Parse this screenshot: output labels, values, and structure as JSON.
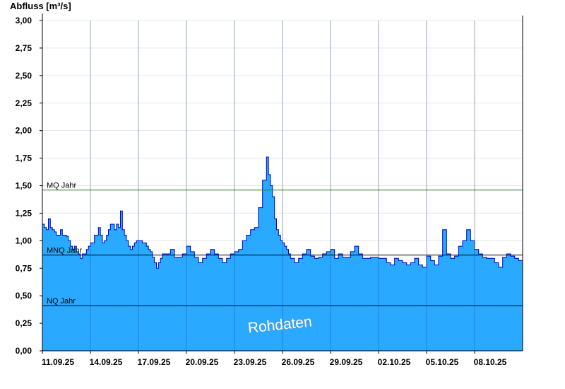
{
  "chart_data": {
    "type": "area",
    "ylabel": "Abfluss [m³/s]",
    "ylim": [
      0,
      3.0
    ],
    "yticks": [
      "0,00",
      "0,25",
      "0,50",
      "0,75",
      "1,00",
      "1,25",
      "1,50",
      "1,75",
      "2,00",
      "2,25",
      "2,50",
      "2,75",
      "3,00"
    ],
    "xlim": [
      "2025-09-11 00:00",
      "2025-10-11 00:00"
    ],
    "xticks": [
      {
        "date": "2025-09-11",
        "label": "11.09.25"
      },
      {
        "date": "2025-09-14",
        "label": "14.09.25"
      },
      {
        "date": "2025-09-17",
        "label": "17.09.25"
      },
      {
        "date": "2025-09-20",
        "label": "20.09.25"
      },
      {
        "date": "2025-09-23",
        "label": "23.09.25"
      },
      {
        "date": "2025-09-26",
        "label": "26.09.25"
      },
      {
        "date": "2025-09-29",
        "label": "29.09.25"
      },
      {
        "date": "2025-10-02",
        "label": "02.10.25"
      },
      {
        "date": "2025-10-05",
        "label": "05.10.25"
      },
      {
        "date": "2025-10-08",
        "label": "08.10.25"
      }
    ],
    "grid": true,
    "colors": {
      "fill": "#29a9ff",
      "line": "#0000cc",
      "mq": "#2e7d2e",
      "ref": "#000000"
    },
    "reference_lines": [
      {
        "label": "MQ Jahr",
        "value": 1.46
      },
      {
        "label": "MNQ Jahr",
        "value": 0.87
      },
      {
        "label": "NQ Jahr",
        "value": 0.41
      }
    ],
    "watermark": "Rohdaten",
    "series": [
      {
        "x": [
          "2025-09-11 00:00",
          "2025-09-11 03:00",
          "2025-09-11 06:00",
          "2025-09-11 09:00",
          "2025-09-11 12:00",
          "2025-09-11 15:00",
          "2025-09-11 18:00",
          "2025-09-11 21:00",
          "2025-09-12 00:00",
          "2025-09-12 03:00",
          "2025-09-12 06:00",
          "2025-09-12 09:00",
          "2025-09-12 12:00",
          "2025-09-12 15:00",
          "2025-09-12 18:00",
          "2025-09-12 21:00",
          "2025-09-13 00:00",
          "2025-09-13 03:00",
          "2025-09-13 06:00",
          "2025-09-13 09:00",
          "2025-09-13 12:00",
          "2025-09-13 15:00",
          "2025-09-13 18:00",
          "2025-09-13 21:00",
          "2025-09-14 00:00",
          "2025-09-14 06:00",
          "2025-09-14 12:00",
          "2025-09-14 15:00",
          "2025-09-14 18:00",
          "2025-09-14 21:00",
          "2025-09-15 00:00",
          "2025-09-15 03:00",
          "2025-09-15 06:00",
          "2025-09-15 09:00",
          "2025-09-15 12:00",
          "2025-09-15 15:00",
          "2025-09-15 18:00",
          "2025-09-15 21:00",
          "2025-09-16 00:00",
          "2025-09-16 03:00",
          "2025-09-16 06:00",
          "2025-09-16 09:00",
          "2025-09-16 12:00",
          "2025-09-16 15:00",
          "2025-09-16 18:00",
          "2025-09-16 21:00",
          "2025-09-17 00:00",
          "2025-09-17 06:00",
          "2025-09-17 12:00",
          "2025-09-17 15:00",
          "2025-09-17 18:00",
          "2025-09-17 21:00",
          "2025-09-18 00:00",
          "2025-09-18 03:00",
          "2025-09-18 06:00",
          "2025-09-18 09:00",
          "2025-09-18 12:00",
          "2025-09-18 15:00",
          "2025-09-18 18:00",
          "2025-09-18 21:00",
          "2025-09-19 00:00",
          "2025-09-19 06:00",
          "2025-09-19 12:00",
          "2025-09-19 18:00",
          "2025-09-20 00:00",
          "2025-09-20 06:00",
          "2025-09-20 12:00",
          "2025-09-20 18:00",
          "2025-09-21 00:00",
          "2025-09-21 06:00",
          "2025-09-21 12:00",
          "2025-09-21 18:00",
          "2025-09-22 00:00",
          "2025-09-22 06:00",
          "2025-09-22 12:00",
          "2025-09-22 18:00",
          "2025-09-23 00:00",
          "2025-09-23 06:00",
          "2025-09-23 12:00",
          "2025-09-23 18:00",
          "2025-09-24 00:00",
          "2025-09-24 06:00",
          "2025-09-24 12:00",
          "2025-09-24 18:00",
          "2025-09-25 00:00",
          "2025-09-25 03:00",
          "2025-09-25 06:00",
          "2025-09-25 09:00",
          "2025-09-25 12:00",
          "2025-09-25 15:00",
          "2025-09-25 18:00",
          "2025-09-25 21:00",
          "2025-09-26 00:00",
          "2025-09-26 03:00",
          "2025-09-26 06:00",
          "2025-09-26 09:00",
          "2025-09-26 12:00",
          "2025-09-26 18:00",
          "2025-09-27 00:00",
          "2025-09-27 06:00",
          "2025-09-27 12:00",
          "2025-09-27 18:00",
          "2025-09-28 00:00",
          "2025-09-28 06:00",
          "2025-09-28 12:00",
          "2025-09-28 18:00",
          "2025-09-29 00:00",
          "2025-09-29 06:00",
          "2025-09-29 12:00",
          "2025-09-29 18:00",
          "2025-09-30 00:00",
          "2025-09-30 06:00",
          "2025-09-30 12:00",
          "2025-09-30 18:00",
          "2025-10-01 00:00",
          "2025-10-01 06:00",
          "2025-10-01 12:00",
          "2025-10-01 18:00",
          "2025-10-02 00:00",
          "2025-10-02 06:00",
          "2025-10-02 12:00",
          "2025-10-02 18:00",
          "2025-10-03 00:00",
          "2025-10-03 06:00",
          "2025-10-03 12:00",
          "2025-10-03 18:00",
          "2025-10-04 00:00",
          "2025-10-04 06:00",
          "2025-10-04 12:00",
          "2025-10-04 18:00",
          "2025-10-05 00:00",
          "2025-10-05 06:00",
          "2025-10-05 12:00",
          "2025-10-05 18:00",
          "2025-10-06 00:00",
          "2025-10-06 06:00",
          "2025-10-06 12:00",
          "2025-10-06 18:00",
          "2025-10-07 00:00",
          "2025-10-07 06:00",
          "2025-10-07 12:00",
          "2025-10-07 18:00",
          "2025-10-08 00:00",
          "2025-10-08 06:00",
          "2025-10-08 12:00",
          "2025-10-08 18:00",
          "2025-10-09 00:00",
          "2025-10-09 06:00",
          "2025-10-09 12:00",
          "2025-10-09 18:00",
          "2025-10-10 00:00",
          "2025-10-10 06:00",
          "2025-10-10 12:00",
          "2025-10-10 18:00",
          "2025-10-11 00:00"
        ],
        "values": [
          1.15,
          1.12,
          1.1,
          1.2,
          1.12,
          1.1,
          1.08,
          1.05,
          1.05,
          1.1,
          1.05,
          1.05,
          1.04,
          1.0,
          0.95,
          0.92,
          0.95,
          0.9,
          0.88,
          0.84,
          0.88,
          0.88,
          0.92,
          0.95,
          0.98,
          1.05,
          1.12,
          1.05,
          0.98,
          1.0,
          1.05,
          1.1,
          1.15,
          1.15,
          1.1,
          1.15,
          1.12,
          1.27,
          1.1,
          1.05,
          1.0,
          0.95,
          0.92,
          0.95,
          0.98,
          1.0,
          1.0,
          0.98,
          0.95,
          0.92,
          0.9,
          0.85,
          0.8,
          0.75,
          0.8,
          0.84,
          0.88,
          0.88,
          0.88,
          0.88,
          0.92,
          0.85,
          0.85,
          0.88,
          0.95,
          0.9,
          0.85,
          0.8,
          0.84,
          0.88,
          0.92,
          0.88,
          0.84,
          0.8,
          0.84,
          0.88,
          0.9,
          0.92,
          1.0,
          1.05,
          1.1,
          1.12,
          1.3,
          1.55,
          1.76,
          1.6,
          1.5,
          1.4,
          1.2,
          1.1,
          1.05,
          1.0,
          0.98,
          0.95,
          0.92,
          0.88,
          0.84,
          0.8,
          0.84,
          0.88,
          0.92,
          0.86,
          0.84,
          0.85,
          0.88,
          0.9,
          0.92,
          0.84,
          0.88,
          0.85,
          0.85,
          0.9,
          0.95,
          0.88,
          0.84,
          0.84,
          0.85,
          0.85,
          0.84,
          0.84,
          0.8,
          0.78,
          0.84,
          0.82,
          0.8,
          0.78,
          0.8,
          0.84,
          0.78,
          0.76,
          0.86,
          0.82,
          0.78,
          0.86,
          1.1,
          0.88,
          0.84,
          0.86,
          0.95,
          1.0,
          1.1,
          1.0,
          0.92,
          0.88,
          0.85,
          0.84,
          0.84,
          0.8,
          0.76,
          0.85,
          0.88,
          0.86,
          0.84,
          0.82,
          0.85
        ]
      }
    ]
  }
}
